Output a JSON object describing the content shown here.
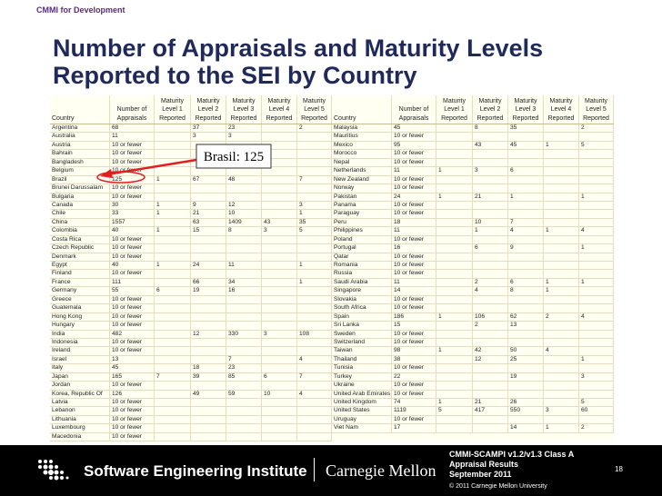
{
  "header": {
    "label": "CMMI for Development"
  },
  "title": {
    "lines": [
      "Number of Appraisals and Maturity Levels",
      "Reported to the SEI by Country"
    ]
  },
  "table": {
    "columns": [
      [
        "Country"
      ],
      [
        "Number of",
        "Appraisals"
      ],
      [
        "Maturity",
        "Level 1",
        "Reported"
      ],
      [
        "Maturity",
        "Level 2",
        "Reported"
      ],
      [
        "Maturity",
        "Level 3",
        "Reported"
      ],
      [
        "Maturity",
        "Level 4",
        "Reported"
      ],
      [
        "Maturity",
        "Level 5",
        "Reported"
      ]
    ],
    "left": [
      [
        "Argentina",
        "68",
        null,
        "37",
        "23",
        null,
        "2"
      ],
      [
        "Australia",
        "11",
        null,
        "3",
        "3",
        null,
        null
      ],
      [
        "Austria",
        "10 or fewer",
        null,
        null,
        null,
        null,
        null
      ],
      [
        "Bahrain",
        "10 or fewer",
        null,
        null,
        null,
        null,
        null
      ],
      [
        "Bangladesh",
        "10 or fewer",
        null,
        null,
        null,
        null,
        null
      ],
      [
        "Belgium",
        "10 or fewer",
        null,
        null,
        null,
        null,
        null
      ],
      [
        "Brazil",
        "125",
        "1",
        "67",
        "48",
        null,
        "7"
      ],
      [
        "Brunei Darussalam",
        "10 or fewer",
        null,
        null,
        null,
        null,
        null
      ],
      [
        "Bulgaria",
        "10 or fewer",
        null,
        null,
        null,
        null,
        null
      ],
      [
        "Canada",
        "30",
        "1",
        "9",
        "12",
        null,
        "3"
      ],
      [
        "Chile",
        "33",
        "1",
        "21",
        "10",
        null,
        "1"
      ],
      [
        "China",
        "1557",
        null,
        "63",
        "1409",
        "43",
        "35"
      ],
      [
        "Colombia",
        "40",
        "1",
        "15",
        "8",
        "3",
        "5"
      ],
      [
        "Costa Rica",
        "10 or fewer",
        null,
        null,
        null,
        null,
        null
      ],
      [
        "Czech Republic",
        "10 or fewer",
        null,
        null,
        null,
        null,
        null
      ],
      [
        "Denmark",
        "10 or fewer",
        null,
        null,
        null,
        null,
        null
      ],
      [
        "Egypt",
        "40",
        "1",
        "24",
        "11",
        null,
        "1"
      ],
      [
        "Finland",
        "10 or fewer",
        null,
        null,
        null,
        null,
        null
      ],
      [
        "France",
        "111",
        null,
        "66",
        "34",
        null,
        "1"
      ],
      [
        "Germany",
        "55",
        "6",
        "19",
        "16",
        null,
        null
      ],
      [
        "Greece",
        "10 or fewer",
        null,
        null,
        null,
        null,
        null
      ],
      [
        "Guatemala",
        "10 or fewer",
        null,
        null,
        null,
        null,
        null
      ],
      [
        "Hong Kong",
        "10 or fewer",
        null,
        null,
        null,
        null,
        null
      ],
      [
        "Hungary",
        "10 or fewer",
        null,
        null,
        null,
        null,
        null
      ],
      [
        "India",
        "482",
        null,
        "12",
        "330",
        "3",
        "108"
      ],
      [
        "Indonesia",
        "10 or fewer",
        null,
        null,
        null,
        null,
        null
      ],
      [
        "Ireland",
        "10 or fewer",
        null,
        null,
        null,
        null,
        null
      ],
      [
        "Israel",
        "13",
        null,
        null,
        "7",
        null,
        "4"
      ],
      [
        "Italy",
        "45",
        null,
        "18",
        "23",
        null,
        null
      ],
      [
        "Japan",
        "165",
        "7",
        "39",
        "85",
        "6",
        "7"
      ],
      [
        "Jordan",
        "10 or fewer",
        null,
        null,
        null,
        null,
        null
      ],
      [
        "Korea, Republic Of",
        "126",
        null,
        "49",
        "59",
        "10",
        "4"
      ],
      [
        "Latvia",
        "10 or fewer",
        null,
        null,
        null,
        null,
        null
      ],
      [
        "Lebanon",
        "10 or fewer",
        null,
        null,
        null,
        null,
        null
      ],
      [
        "Lithuania",
        "10 or fewer",
        null,
        null,
        null,
        null,
        null
      ],
      [
        "Luxembourg",
        "10 or fewer",
        null,
        null,
        null,
        null,
        null
      ],
      [
        "Macedonia",
        "10 or fewer",
        null,
        null,
        null,
        null,
        null
      ]
    ],
    "right": [
      [
        "Malaysia",
        "45",
        null,
        "8",
        "35",
        null,
        "2"
      ],
      [
        "Mauritius",
        "10 or fewer",
        null,
        null,
        null,
        null,
        null
      ],
      [
        "Mexico",
        "95",
        null,
        "43",
        "45",
        "1",
        "5"
      ],
      [
        "Morocco",
        "10 or fewer",
        null,
        null,
        null,
        null,
        null
      ],
      [
        "Nepal",
        "10 or fewer",
        null,
        null,
        null,
        null,
        null
      ],
      [
        "Netherlands",
        "11",
        "1",
        "3",
        "6",
        null,
        null
      ],
      [
        "New Zealand",
        "10 or fewer",
        null,
        null,
        null,
        null,
        null
      ],
      [
        "Norway",
        "10 or fewer",
        null,
        null,
        null,
        null,
        null
      ],
      [
        "Pakistan",
        "24",
        "1",
        "21",
        "1",
        null,
        "1"
      ],
      [
        "Panama",
        "10 or fewer",
        null,
        null,
        null,
        null,
        null
      ],
      [
        "Paraguay",
        "10 or fewer",
        null,
        null,
        null,
        null,
        null
      ],
      [
        "Peru",
        "18",
        null,
        "10",
        "7",
        null,
        null
      ],
      [
        "Philippines",
        "11",
        null,
        "1",
        "4",
        "1",
        "4"
      ],
      [
        "Poland",
        "10 or fewer",
        null,
        null,
        null,
        null,
        null
      ],
      [
        "Portugal",
        "16",
        null,
        "6",
        "9",
        null,
        "1"
      ],
      [
        "Qatar",
        "10 or fewer",
        null,
        null,
        null,
        null,
        null
      ],
      [
        "Romania",
        "10 or fewer",
        null,
        null,
        null,
        null,
        null
      ],
      [
        "Russia",
        "10 or fewer",
        null,
        null,
        null,
        null,
        null
      ],
      [
        "Saudi Arabia",
        "11",
        null,
        "2",
        "6",
        "1",
        "1"
      ],
      [
        "Singapore",
        "14",
        null,
        "4",
        "8",
        "1",
        null
      ],
      [
        "Slovakia",
        "10 or fewer",
        null,
        null,
        null,
        null,
        null
      ],
      [
        "South Africa",
        "10 or fewer",
        null,
        null,
        null,
        null,
        null
      ],
      [
        "Spain",
        "186",
        "1",
        "106",
        "62",
        "2",
        "4"
      ],
      [
        "Sri Lanka",
        "15",
        null,
        "2",
        "13",
        null,
        null
      ],
      [
        "Sweden",
        "10 or fewer",
        null,
        null,
        null,
        null,
        null
      ],
      [
        "Switzerland",
        "10 or fewer",
        null,
        null,
        null,
        null,
        null
      ],
      [
        "Taiwan",
        "98",
        "1",
        "42",
        "50",
        "4",
        null
      ],
      [
        "Thailand",
        "38",
        null,
        "12",
        "25",
        null,
        "1"
      ],
      [
        "Tunisia",
        "10 or fewer",
        null,
        null,
        null,
        null,
        null
      ],
      [
        "Turkey",
        "22",
        null,
        null,
        "19",
        null,
        "3"
      ],
      [
        "Ukraine",
        "10 or fewer",
        null,
        null,
        null,
        null,
        null
      ],
      [
        "United Arab Emirates",
        "10 or fewer",
        null,
        null,
        null,
        null,
        null
      ],
      [
        "United Kingdom",
        "74",
        "1",
        "21",
        "26",
        null,
        "5"
      ],
      [
        "United States",
        "1119",
        "5",
        "417",
        "550",
        "3",
        "60"
      ],
      [
        "Uruguay",
        "10 or fewer",
        null,
        null,
        null,
        null,
        null
      ],
      [
        "Viet Nam",
        "17",
        null,
        null,
        "14",
        "1",
        "2"
      ]
    ]
  },
  "callout": {
    "label": "Brasil: 125"
  },
  "footer": {
    "org": "Software Engineering Institute",
    "university": "Carnegie Mellon",
    "report": [
      "CMMI-SCAMPI v1.2/v1.3 Class A",
      "Appraisal Results",
      "September 2011"
    ],
    "copyright": "© 2011 Carnegie Mellon University",
    "page": "18"
  }
}
